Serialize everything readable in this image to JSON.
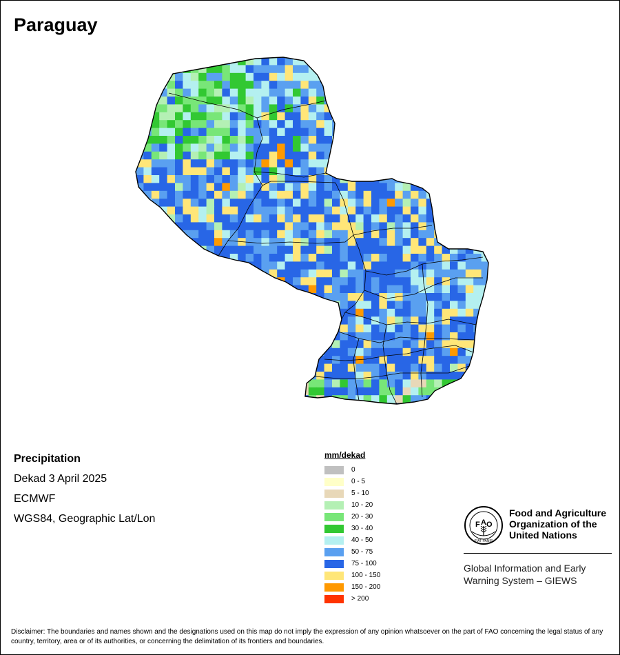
{
  "title": "Paraguay",
  "info": {
    "variable": "Precipitation",
    "period": "Dekad 3 April 2025",
    "source": "ECMWF",
    "projection": "WGS84, Geographic Lat/Lon"
  },
  "legend": {
    "title": "mm/dekad",
    "classes": [
      {
        "label": "0",
        "color": "#c0c0c0"
      },
      {
        "label": "0 - 5",
        "color": "#ffffc8"
      },
      {
        "label": "5 - 10",
        "color": "#e8d8b8"
      },
      {
        "label": "10 - 20",
        "color": "#b4f0b4"
      },
      {
        "label": "20 - 30",
        "color": "#78e678"
      },
      {
        "label": "30 - 40",
        "color": "#32c832"
      },
      {
        "label": "40 - 50",
        "color": "#b4f0f0"
      },
      {
        "label": "50 - 75",
        "color": "#5aa0f0"
      },
      {
        "label": "75 - 100",
        "color": "#2866e6"
      },
      {
        "label": "100 - 150",
        "color": "#ffe678"
      },
      {
        "label": "150 - 200",
        "color": "#ff9900"
      },
      {
        "label": "> 200",
        "color": "#ff3300"
      }
    ]
  },
  "organization": {
    "name_lines": [
      "Food and Agriculture",
      "Organization of the",
      "United Nations"
    ],
    "logo_letters": [
      "F",
      "A",
      "O"
    ],
    "logo_motto": "FIAT PANIS",
    "system_lines": [
      "Global Information and Early",
      "Warning System – GIEWS"
    ]
  },
  "disclaimer": "Disclaimer: The boundaries and names shown and the designations used on this map do not imply the expression of any opinion whatsoever on the part of FAO concerning the legal status of any country, territory, area or of its authorities, or concerning the delimitation of its frontiers and boundaries."
}
